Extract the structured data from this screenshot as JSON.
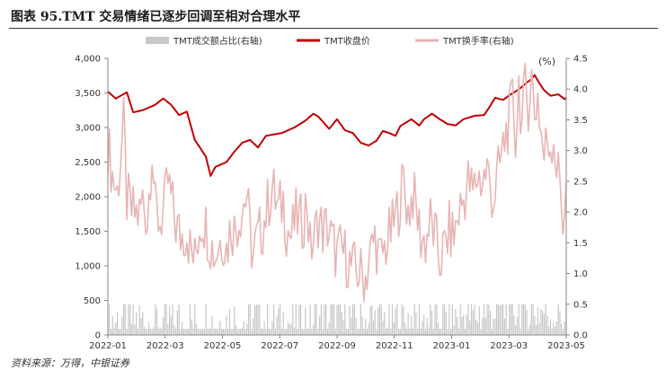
{
  "header": {
    "title": "图表 95.TMT 交易情绪已逐步回调至相对合理水平"
  },
  "footer": {
    "source": "资料来源：万得，中银证券"
  },
  "chart_data": {
    "type": "bar+line",
    "x_tick_labels": [
      "2022-01",
      "2022-03",
      "2022-05",
      "2022-07",
      "2022-09",
      "2022-11",
      "2023-01",
      "2023-03",
      "2023-05"
    ],
    "left_axis": {
      "ylim": [
        0,
        4000
      ],
      "ticks": [
        "0",
        "500",
        "1,000",
        "1,500",
        "2,000",
        "2,500",
        "3,000",
        "3,500",
        "4,000"
      ]
    },
    "right_axis": {
      "label": "(%)",
      "ylim": [
        0,
        4.5
      ],
      "ticks": [
        "0.0",
        "0.5",
        "1.0",
        "1.5",
        "2.0",
        "2.5",
        "3.0",
        "3.5",
        "4.0",
        "4.5"
      ]
    },
    "legend": {
      "position": "top"
    },
    "series": [
      {
        "name": "TMT成交额占比(右轴)",
        "type": "bar",
        "axis": "right",
        "color": "#c8c8c8",
        "keypoints": [
          [
            0,
            0.24
          ],
          [
            10,
            0.26
          ],
          [
            20,
            0.22
          ],
          [
            30,
            0.21
          ],
          [
            50,
            0.2
          ],
          [
            60,
            0.21
          ],
          [
            70,
            0.22
          ],
          [
            80,
            0.23
          ],
          [
            90,
            0.24
          ],
          [
            100,
            0.23
          ],
          [
            115,
            0.22
          ],
          [
            125,
            0.22
          ],
          [
            135,
            0.25
          ],
          [
            145,
            0.27
          ],
          [
            155,
            0.26
          ],
          [
            170,
            0.23
          ],
          [
            185,
            0.24
          ],
          [
            200,
            0.25
          ],
          [
            215,
            0.28
          ],
          [
            225,
            0.32
          ],
          [
            235,
            0.36
          ],
          [
            245,
            0.42
          ],
          [
            250,
            0.44
          ],
          [
            258,
            0.47
          ],
          [
            265,
            0.42
          ],
          [
            275,
            0.4
          ],
          [
            283,
            0.36
          ],
          [
            290,
            0.35
          ]
        ]
      },
      {
        "name": "TMT收盘价",
        "type": "line",
        "axis": "left",
        "color": "#c00000",
        "keypoints": [
          [
            0,
            3520
          ],
          [
            5,
            3420
          ],
          [
            12,
            3510
          ],
          [
            16,
            3220
          ],
          [
            22,
            3250
          ],
          [
            30,
            3330
          ],
          [
            35,
            3420
          ],
          [
            40,
            3330
          ],
          [
            45,
            3180
          ],
          [
            50,
            3230
          ],
          [
            55,
            2820
          ],
          [
            58,
            2720
          ],
          [
            62,
            2580
          ],
          [
            65,
            2300
          ],
          [
            68,
            2430
          ],
          [
            75,
            2500
          ],
          [
            80,
            2650
          ],
          [
            85,
            2780
          ],
          [
            90,
            2820
          ],
          [
            95,
            2710
          ],
          [
            100,
            2880
          ],
          [
            110,
            2920
          ],
          [
            118,
            3000
          ],
          [
            125,
            3100
          ],
          [
            130,
            3200
          ],
          [
            133,
            3160
          ],
          [
            137,
            3060
          ],
          [
            140,
            2980
          ],
          [
            145,
            3120
          ],
          [
            150,
            2960
          ],
          [
            155,
            2920
          ],
          [
            160,
            2780
          ],
          [
            165,
            2740
          ],
          [
            170,
            2810
          ],
          [
            174,
            2950
          ],
          [
            178,
            2920
          ],
          [
            182,
            2880
          ],
          [
            185,
            3020
          ],
          [
            192,
            3120
          ],
          [
            197,
            3030
          ],
          [
            200,
            3120
          ],
          [
            205,
            3200
          ],
          [
            210,
            3120
          ],
          [
            215,
            3050
          ],
          [
            220,
            3030
          ],
          [
            225,
            3120
          ],
          [
            232,
            3170
          ],
          [
            238,
            3180
          ],
          [
            241,
            3280
          ],
          [
            245,
            3430
          ],
          [
            250,
            3400
          ],
          [
            255,
            3480
          ],
          [
            260,
            3550
          ],
          [
            265,
            3650
          ],
          [
            268,
            3700
          ],
          [
            270,
            3760
          ],
          [
            273,
            3640
          ],
          [
            276,
            3540
          ],
          [
            280,
            3460
          ],
          [
            285,
            3480
          ],
          [
            289,
            3410
          ],
          [
            290,
            3430
          ]
        ]
      },
      {
        "name": "TMT换手率(右轴)",
        "type": "line",
        "axis": "right",
        "color": "#e8b4b4",
        "keypoints": [
          [
            0,
            3.1
          ],
          [
            3,
            2.6
          ],
          [
            6,
            2.3
          ],
          [
            8,
            2.9
          ],
          [
            10,
            3.4
          ],
          [
            12,
            2.2
          ],
          [
            15,
            2.0
          ],
          [
            20,
            1.95
          ],
          [
            22,
            2.2
          ],
          [
            25,
            1.9
          ],
          [
            28,
            3.1
          ],
          [
            30,
            2.0
          ],
          [
            33,
            1.85
          ],
          [
            36,
            2.1
          ],
          [
            38,
            2.5
          ],
          [
            40,
            2.2
          ],
          [
            43,
            1.8
          ],
          [
            46,
            1.6
          ],
          [
            50,
            1.7
          ],
          [
            52,
            1.4
          ],
          [
            55,
            1.2
          ],
          [
            58,
            1.8
          ],
          [
            60,
            1.9
          ],
          [
            63,
            1.7
          ],
          [
            65,
            1.5
          ],
          [
            68,
            1.3
          ],
          [
            70,
            1.5
          ],
          [
            73,
            1.6
          ],
          [
            75,
            1.4
          ],
          [
            78,
            1.8
          ],
          [
            80,
            1.7
          ],
          [
            84,
            2.0
          ],
          [
            88,
            2.3
          ],
          [
            90,
            1.6
          ],
          [
            92,
            1.3
          ],
          [
            95,
            1.6
          ],
          [
            98,
            1.75
          ],
          [
            101,
            2.1
          ],
          [
            104,
            2.4
          ],
          [
            108,
            2.0
          ],
          [
            111,
            2.2
          ],
          [
            113,
            1.75
          ],
          [
            116,
            1.6
          ],
          [
            119,
            1.9
          ],
          [
            123,
            1.8
          ],
          [
            126,
            2.2
          ],
          [
            128,
            1.4
          ],
          [
            131,
            1.6
          ],
          [
            133,
            1.9
          ],
          [
            136,
            1.7
          ],
          [
            139,
            1.75
          ],
          [
            142,
            1.5
          ],
          [
            145,
            1.3
          ],
          [
            148,
            1.4
          ],
          [
            151,
            1.25
          ],
          [
            154,
            1.1
          ],
          [
            157,
            1.05
          ],
          [
            160,
            1.0
          ],
          [
            163,
            0.95
          ],
          [
            166,
            1.3
          ],
          [
            169,
            1.6
          ],
          [
            172,
            1.2
          ],
          [
            175,
            1.4
          ],
          [
            178,
            1.6
          ],
          [
            181,
            1.8
          ],
          [
            184,
            2.1
          ],
          [
            187,
            2.5
          ],
          [
            190,
            2.0
          ],
          [
            193,
            2.3
          ],
          [
            196,
            1.9
          ],
          [
            198,
            1.6
          ],
          [
            201,
            1.5
          ],
          [
            204,
            1.85
          ],
          [
            207,
            1.6
          ],
          [
            210,
            1.2
          ],
          [
            213,
            1.4
          ],
          [
            216,
            1.7
          ],
          [
            219,
            1.6
          ],
          [
            222,
            2.0
          ],
          [
            225,
            2.2
          ],
          [
            228,
            2.5
          ],
          [
            231,
            2.3
          ],
          [
            234,
            2.6
          ],
          [
            237,
            2.5
          ],
          [
            240,
            2.7
          ],
          [
            242,
            2.4
          ],
          [
            244,
            2.2
          ],
          [
            246,
            2.5
          ],
          [
            249,
            2.9
          ],
          [
            252,
            3.3
          ],
          [
            254,
            3.5
          ],
          [
            256,
            3.8
          ],
          [
            258,
            3.2
          ],
          [
            260,
            4.1
          ],
          [
            262,
            3.4
          ],
          [
            264,
            4.0
          ],
          [
            266,
            3.8
          ],
          [
            268,
            4.2
          ],
          [
            270,
            3.6
          ],
          [
            272,
            3.9
          ],
          [
            274,
            3.3
          ],
          [
            276,
            2.9
          ],
          [
            278,
            3.2
          ],
          [
            280,
            3.1
          ],
          [
            282,
            3.25
          ],
          [
            284,
            2.7
          ],
          [
            286,
            2.5
          ],
          [
            288,
            1.9
          ],
          [
            290,
            2.3
          ]
        ]
      }
    ]
  }
}
